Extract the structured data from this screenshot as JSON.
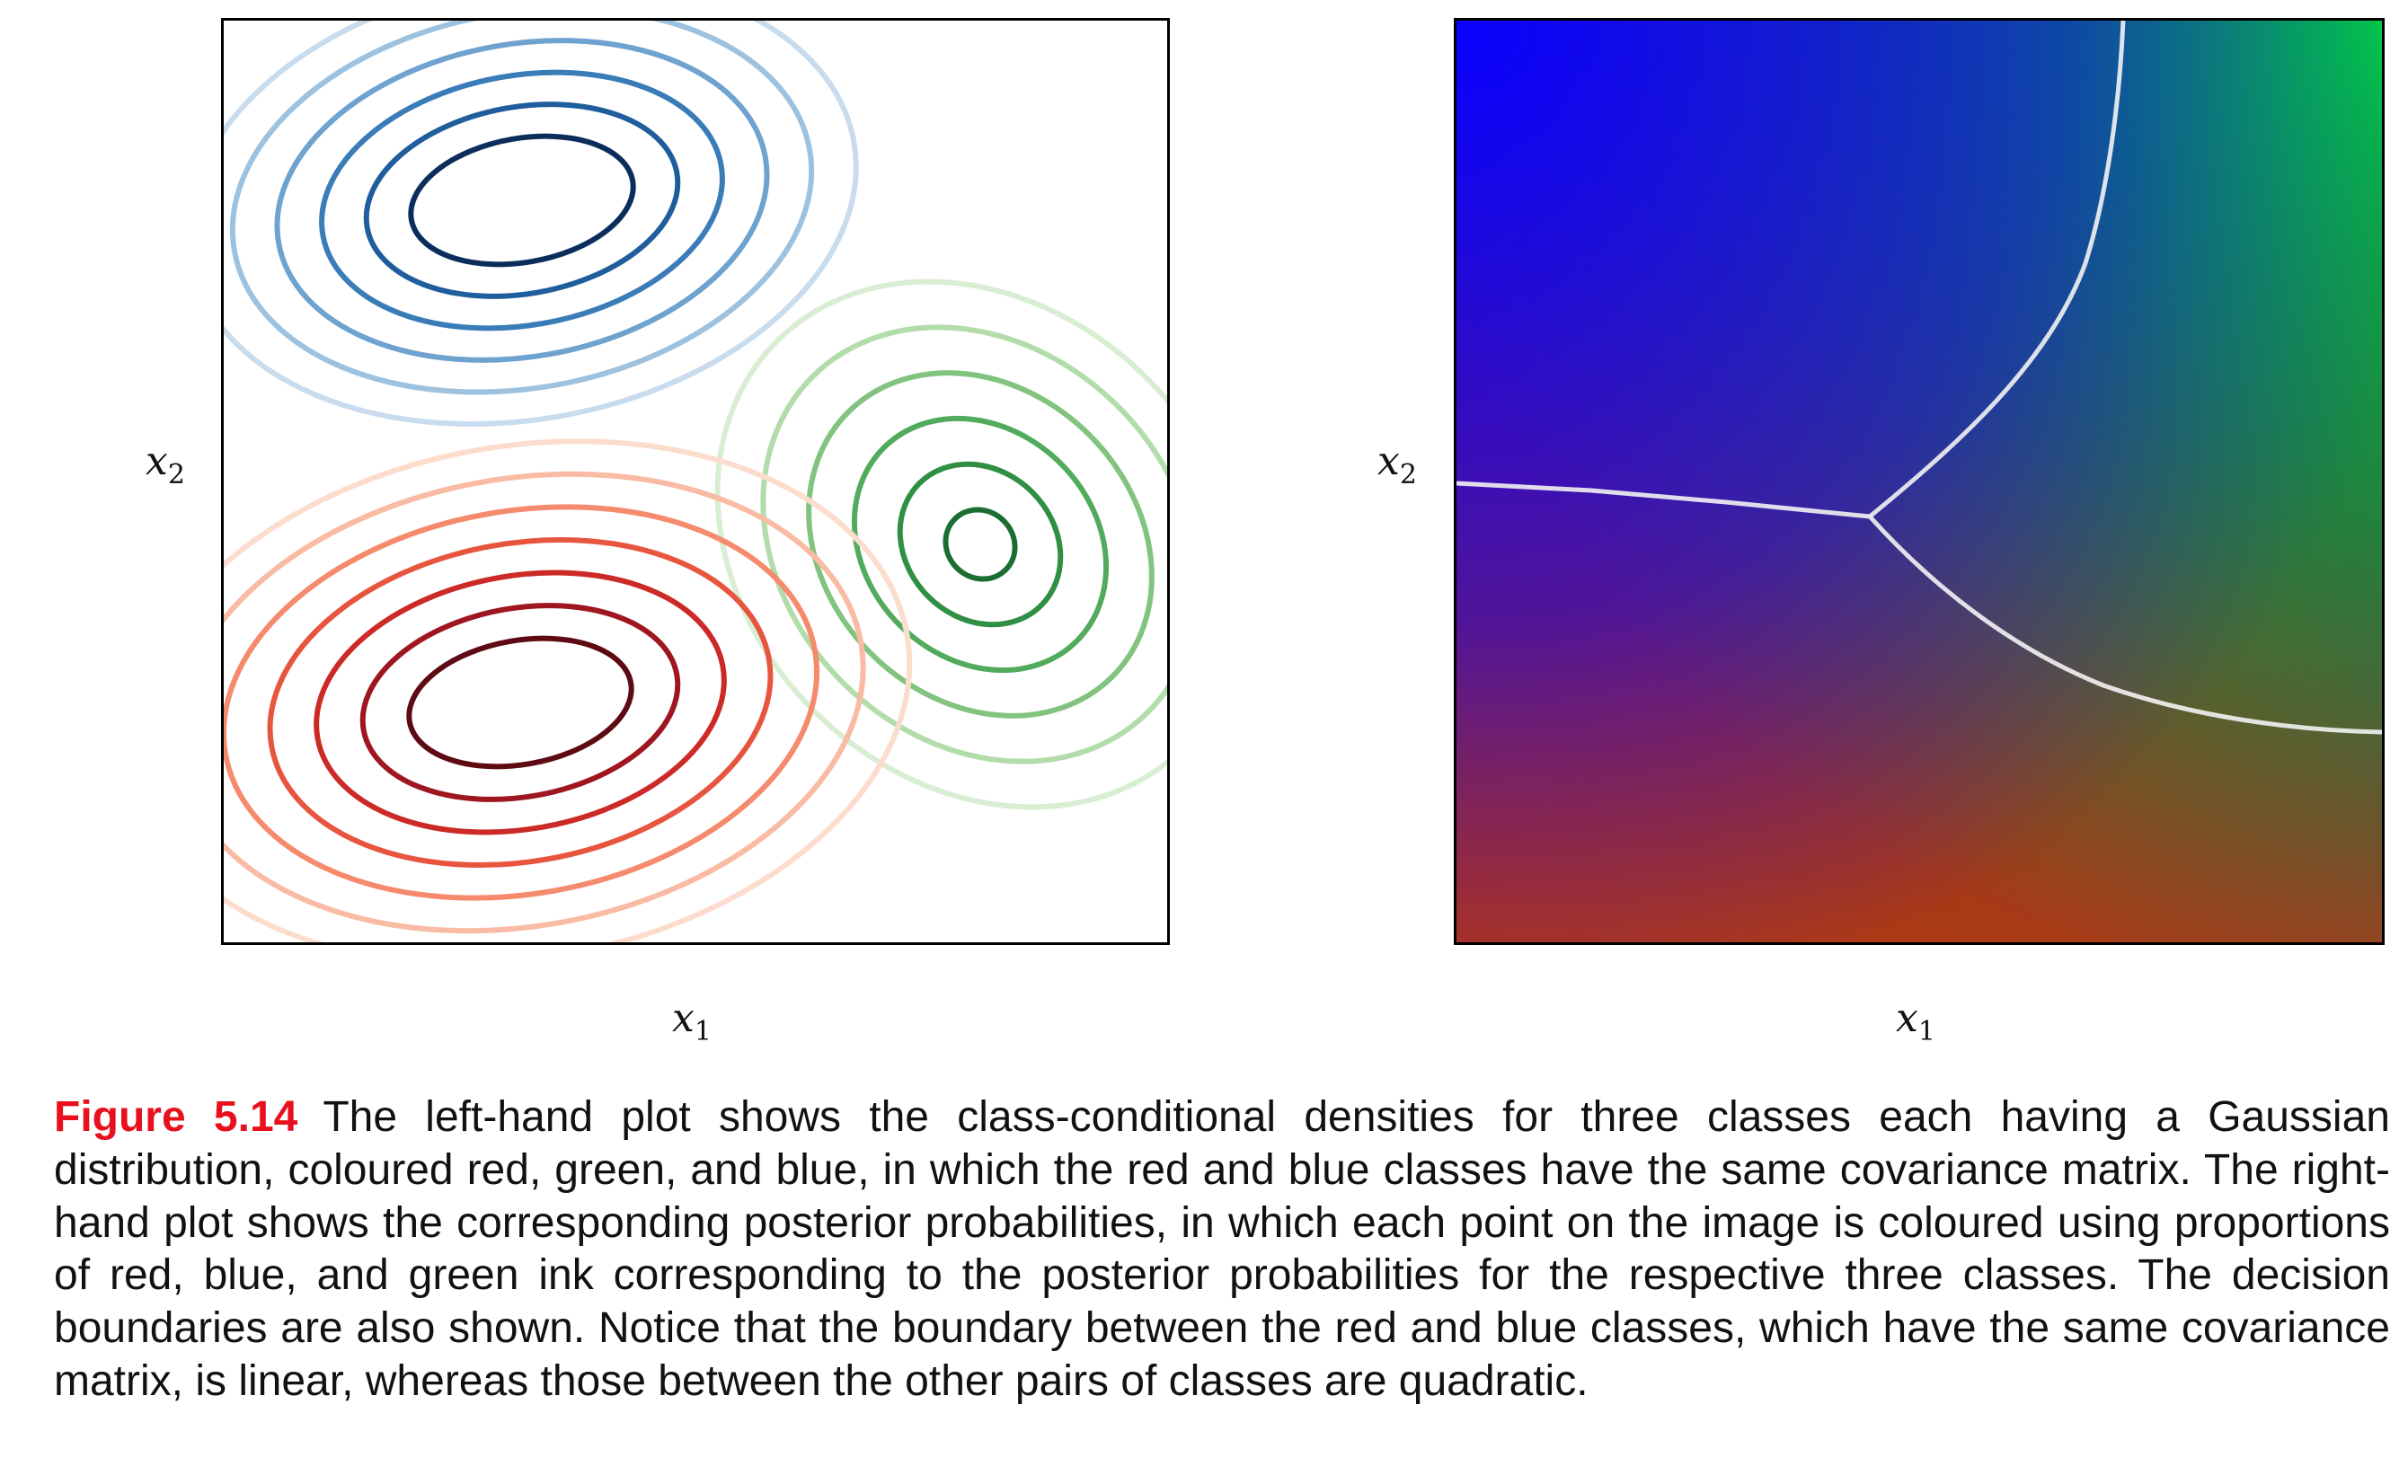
{
  "figure": {
    "label": "Figure 5.14",
    "caption": "The left-hand plot shows the class-conditional densities for three classes each having a Gaussian distribution, coloured red, green, and blue, in which the red and blue classes have the same covariance matrix. The right-hand plot shows the corresponding posterior probabilities, in which each point on the image is coloured using proportions of red, blue, and green ink corresponding to the posterior probabilities for the respective three classes. The decision boundaries are also shown. Notice that the boundary between the red and blue classes, which have the same covariance matrix, is linear, whereas those between the other pairs of classes are quadratic."
  },
  "chart_data": [
    {
      "type": "contour",
      "xlabel_var": "x",
      "xlabel_sub": "1",
      "ylabel_var": "x",
      "ylabel_sub": "2",
      "grid": false,
      "series": [
        {
          "color": "#1f4e8c",
          "palette": [
            "#0b2d5c",
            "#1f5d9c",
            "#3a7cb8",
            "#6ea2cf",
            "#9dc2df",
            "#c8dcee"
          ]
        },
        {
          "color": "#2e8b3e",
          "palette": [
            "#1b6d31",
            "#2f8f43",
            "#52ab5c",
            "#82c47f",
            "#b3dcab",
            "#d8eed3"
          ]
        },
        {
          "color": "#b3171e",
          "palette": [
            "#5e0a12",
            "#9e1620",
            "#cc2a26",
            "#e8553f",
            "#f58a6c",
            "#f9bba3",
            "#fcdccd"
          ]
        }
      ]
    },
    {
      "type": "heatmap",
      "xlabel_var": "x",
      "xlabel_sub": "1",
      "ylabel_var": "x",
      "ylabel_sub": "2",
      "grid": false,
      "colors": {
        "red": "#e01e00",
        "green": "#00e030",
        "blue": "#0a00ff",
        "boundary": "#f3f3f3"
      }
    }
  ]
}
